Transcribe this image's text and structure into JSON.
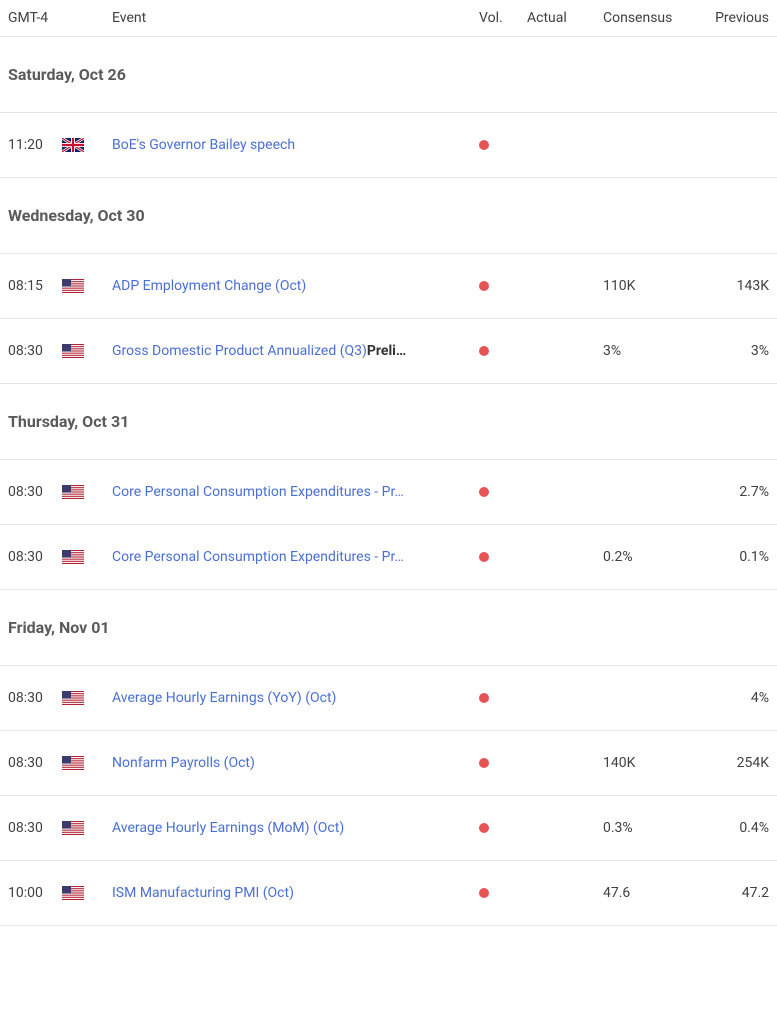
{
  "headers": {
    "time": "GMT-4",
    "event": "Event",
    "vol": "Vol.",
    "actual": "Actual",
    "consensus": "Consensus",
    "previous": "Previous"
  },
  "vol_dot_color": "#e55353",
  "link_color": "#4a6fd4",
  "text_color": "#404040",
  "border_color": "#e5e5e5",
  "days": [
    {
      "label": "Saturday, Oct 26",
      "events": [
        {
          "time": "11:20",
          "flag": "gb",
          "event": "BoE's Governor Bailey speech",
          "suffix": "",
          "actual": "",
          "consensus": "",
          "previous": ""
        }
      ]
    },
    {
      "label": "Wednesday, Oct 30",
      "events": [
        {
          "time": "08:15",
          "flag": "us",
          "event": "ADP Employment Change (Oct)",
          "suffix": "",
          "actual": "",
          "consensus": "110K",
          "previous": "143K"
        },
        {
          "time": "08:30",
          "flag": "us",
          "event": "Gross Domestic Product Annualized (Q3)",
          "suffix": "Preli…",
          "actual": "",
          "consensus": "3%",
          "previous": "3%"
        }
      ]
    },
    {
      "label": "Thursday, Oct 31",
      "events": [
        {
          "time": "08:30",
          "flag": "us",
          "event": "Core Personal Consumption Expenditures - Pr…",
          "suffix": "",
          "actual": "",
          "consensus": "",
          "previous": "2.7%"
        },
        {
          "time": "08:30",
          "flag": "us",
          "event": "Core Personal Consumption Expenditures - Pr…",
          "suffix": "",
          "actual": "",
          "consensus": "0.2%",
          "previous": "0.1%"
        }
      ]
    },
    {
      "label": "Friday, Nov 01",
      "events": [
        {
          "time": "08:30",
          "flag": "us",
          "event": "Average Hourly Earnings (YoY) (Oct)",
          "suffix": "",
          "actual": "",
          "consensus": "",
          "previous": "4%"
        },
        {
          "time": "08:30",
          "flag": "us",
          "event": "Nonfarm Payrolls (Oct)",
          "suffix": "",
          "actual": "",
          "consensus": "140K",
          "previous": "254K"
        },
        {
          "time": "08:30",
          "flag": "us",
          "event": "Average Hourly Earnings (MoM) (Oct)",
          "suffix": "",
          "actual": "",
          "consensus": "0.3%",
          "previous": "0.4%"
        },
        {
          "time": "10:00",
          "flag": "us",
          "event": "ISM Manufacturing PMI (Oct)",
          "suffix": "",
          "actual": "",
          "consensus": "47.6",
          "previous": "47.2"
        }
      ]
    }
  ]
}
